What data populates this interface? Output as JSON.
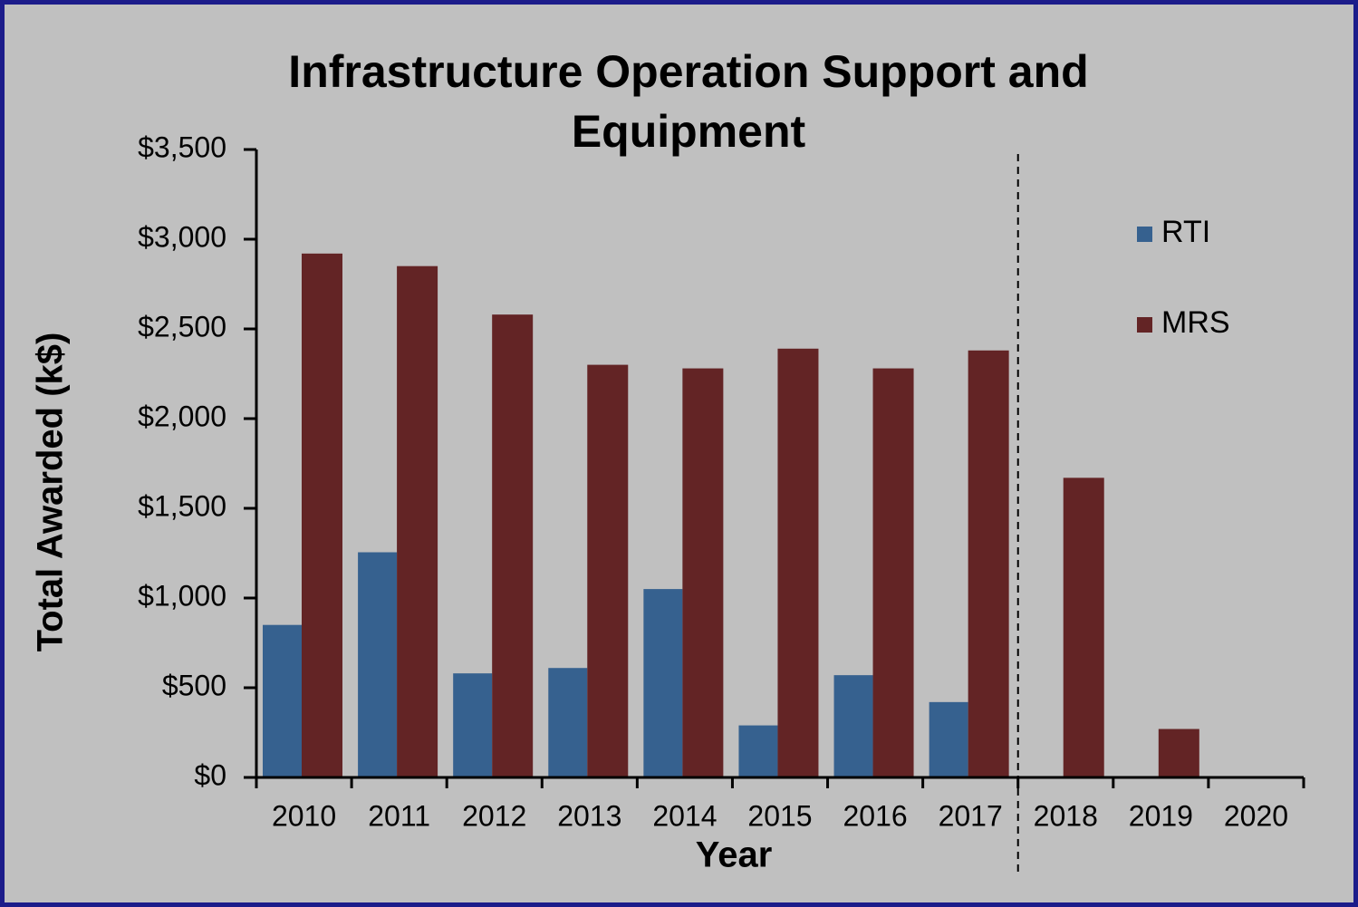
{
  "chart_data": {
    "type": "bar",
    "title": "Infrastructure Operation Support and Equipment",
    "x_label": "Year",
    "y_label": "Total Awarded (k$)",
    "categories": [
      "2010",
      "2011",
      "2012",
      "2013",
      "2014",
      "2015",
      "2016",
      "2017",
      "2018",
      "2019",
      "2020"
    ],
    "series": [
      {
        "name": "RTI",
        "color": "#36618f",
        "values": [
          850,
          1255,
          580,
          610,
          1050,
          290,
          570,
          420,
          null,
          null,
          null
        ]
      },
      {
        "name": "MRS",
        "color": "#632425",
        "values": [
          2920,
          2850,
          2580,
          2300,
          2280,
          2390,
          2280,
          2380,
          1670,
          270,
          null
        ]
      }
    ],
    "ylim": [
      0,
      3500
    ],
    "yticks": [
      {
        "value": 0,
        "label": "$0"
      },
      {
        "value": 500,
        "label": "$500"
      },
      {
        "value": 1000,
        "label": "$1,000"
      },
      {
        "value": 1500,
        "label": "$1,500"
      },
      {
        "value": 2000,
        "label": "$2,000"
      },
      {
        "value": 2500,
        "label": "$2,500"
      },
      {
        "value": 3000,
        "label": "$3,000"
      },
      {
        "value": 3500,
        "label": "$3,500"
      }
    ],
    "grid": false,
    "legend": "upper right"
  }
}
